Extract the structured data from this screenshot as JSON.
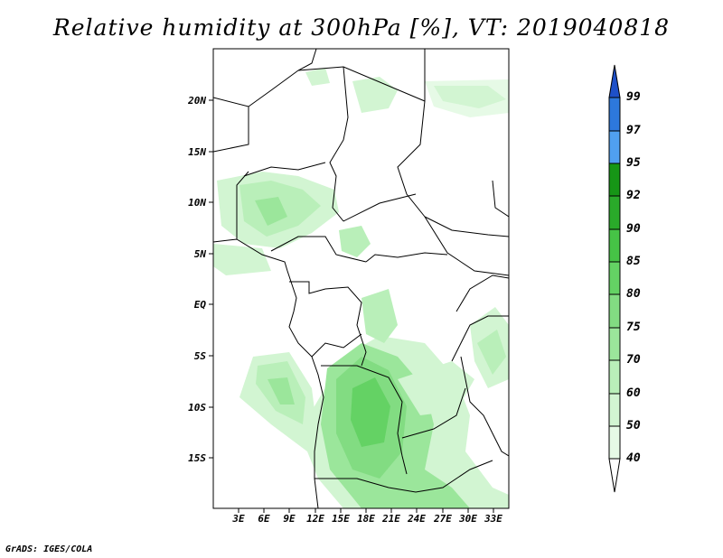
{
  "title": "Relative humidity at 300hPa [%], VT: 2019040818",
  "credit": "GrADS: IGES/COLA",
  "map": {
    "lat_labels": [
      "20N",
      "15N",
      "10N",
      "5N",
      "EQ",
      "5S",
      "10S",
      "15S"
    ],
    "lon_labels": [
      "3E",
      "6E",
      "9E",
      "12E",
      "15E",
      "18E",
      "21E",
      "24E",
      "27E",
      "30E",
      "33E"
    ]
  },
  "colorbar": {
    "levels": [
      "40",
      "50",
      "60",
      "70",
      "75",
      "80",
      "85",
      "90",
      "92",
      "95",
      "97",
      "99"
    ],
    "colors": [
      "#e6fae6",
      "#d2f5d2",
      "#b9efb9",
      "#9be69b",
      "#82dc82",
      "#64d264",
      "#46c346",
      "#2aaa2a",
      "#169616",
      "#50a0f0",
      "#2d78dc",
      "#1e50c8"
    ]
  }
}
